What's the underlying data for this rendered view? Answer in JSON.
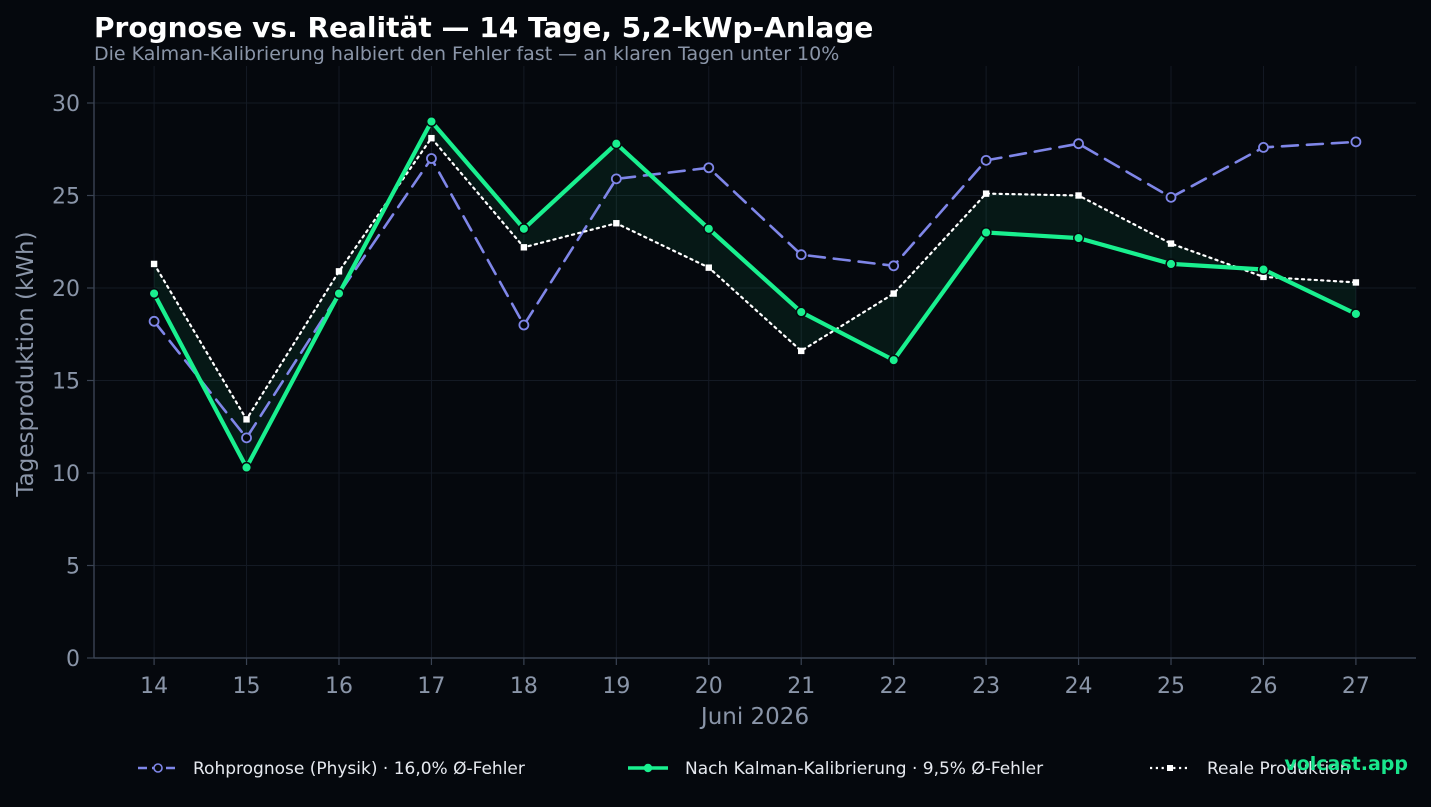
{
  "chart_data": {
    "type": "line",
    "title": "Prognose vs. Realität — 14 Tage, 5,2-kWp-Anlage",
    "subtitle": "Die Kalman-Kalibrierung halbiert den Fehler fast — an klaren Tagen unter 10%",
    "xlabel": "Juni 2026",
    "ylabel": "Tagesproduktion (kWh)",
    "x": [
      14,
      15,
      16,
      17,
      18,
      19,
      20,
      21,
      22,
      23,
      24,
      25,
      26,
      27
    ],
    "xlim": [
      13.35,
      27.65
    ],
    "ylim": [
      0,
      32
    ],
    "yticks": [
      0,
      5,
      10,
      15,
      20,
      25,
      30
    ],
    "grid": true,
    "legend_position": "bottom",
    "series": [
      {
        "name": "Rohprognose (Physik)",
        "legend_label": "Rohprognose (Physik)  ·  16,0% Ø-Fehler",
        "color": "#7f86e8",
        "style": "dashed",
        "marker": "open-circle",
        "values": [
          18.2,
          11.9,
          19.7,
          27.0,
          18.0,
          25.9,
          26.5,
          21.8,
          21.2,
          26.9,
          27.8,
          24.9,
          27.6,
          27.9
        ]
      },
      {
        "name": "Nach Kalman-Kalibrierung",
        "legend_label": "Nach Kalman-Kalibrierung  ·  9,5% Ø-Fehler",
        "color": "#19f08f",
        "style": "solid",
        "marker": "filled-circle",
        "values": [
          19.7,
          10.3,
          19.7,
          29.0,
          23.2,
          27.8,
          23.2,
          18.7,
          16.1,
          23.0,
          22.7,
          21.3,
          21.0,
          18.6
        ]
      },
      {
        "name": "Reale Produktion",
        "legend_label": "Reale Produktion",
        "color": "#ffffff",
        "style": "dotted",
        "marker": "square",
        "values": [
          21.3,
          12.9,
          20.9,
          28.1,
          22.2,
          23.5,
          21.1,
          16.6,
          19.7,
          25.1,
          25.0,
          22.4,
          20.6,
          20.3
        ]
      }
    ],
    "fill_between": {
      "series_a": 1,
      "series_b": 2,
      "color": "#19f08f",
      "opacity": 0.07
    }
  },
  "watermark": "volcast.app"
}
